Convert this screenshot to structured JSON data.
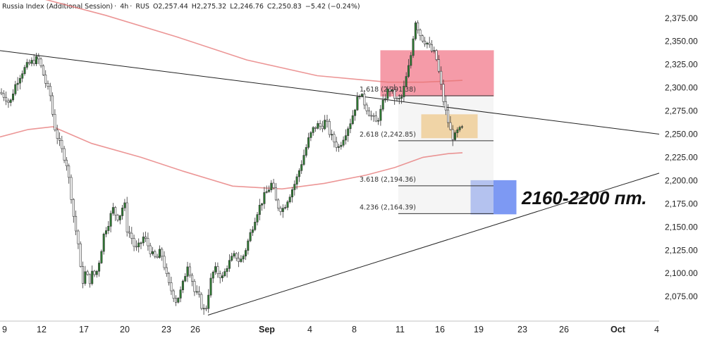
{
  "header": {
    "instrument": "Russia Index (Additional Session)",
    "interval": "4h",
    "exchange": "RUS",
    "open": "O2,257.44",
    "high": "H2,275.32",
    "low": "L2,246.76",
    "close": "C2,250.83",
    "change": "−5.42 (−0.24%)"
  },
  "colors": {
    "up": "#2e7d32",
    "down": "#ffffff",
    "ma": "#e57373",
    "red_zone": "#f48a9a",
    "orange_zone": "#f5b650",
    "blue_zone": "#6f8ff2",
    "fib_bg": "#ebebeb"
  },
  "chart_data": {
    "type": "candlestick",
    "y_axis": {
      "min": 2050,
      "max": 2390,
      "ticks": [
        2075,
        2100,
        2125,
        2150,
        2175,
        2200,
        2225,
        2250,
        2275,
        2300,
        2325,
        2350,
        2375
      ],
      "tick_labels": [
        "2,075.00",
        "2,100.00",
        "2,125.00",
        "2,150.00",
        "2,175.00",
        "2,200.00",
        "2,225.00",
        "2,250.00",
        "2,275.00",
        "2,300.00",
        "2,325.00",
        "2,350.00",
        "2,375.00"
      ],
      "position": "right"
    },
    "x_axis": {
      "tick_labels": [
        "9",
        "12",
        "17",
        "20",
        "23",
        "26",
        "Sep",
        "4",
        "8",
        "11",
        "16",
        "19",
        "23",
        "26",
        "Oct",
        "4"
      ],
      "bold_labels": [
        "Sep",
        "Oct"
      ]
    },
    "candle_anchors": [
      [
        0,
        2295
      ],
      [
        8,
        2290
      ],
      [
        14,
        2282
      ],
      [
        20,
        2300
      ],
      [
        26,
        2310
      ],
      [
        32,
        2318
      ],
      [
        40,
        2325
      ],
      [
        46,
        2328
      ],
      [
        54,
        2332
      ],
      [
        60,
        2318
      ],
      [
        66,
        2302
      ],
      [
        72,
        2290
      ],
      [
        76,
        2262
      ],
      [
        82,
        2245
      ],
      [
        88,
        2232
      ],
      [
        94,
        2220
      ],
      [
        98,
        2200
      ],
      [
        102,
        2178
      ],
      [
        106,
        2150
      ],
      [
        110,
        2140
      ],
      [
        114,
        2105
      ],
      [
        118,
        2090
      ],
      [
        122,
        2105
      ],
      [
        126,
        2088
      ],
      [
        130,
        2100
      ],
      [
        136,
        2098
      ],
      [
        142,
        2118
      ],
      [
        148,
        2145
      ],
      [
        154,
        2155
      ],
      [
        160,
        2170
      ],
      [
        166,
        2160
      ],
      [
        172,
        2165
      ],
      [
        176,
        2180
      ],
      [
        180,
        2148
      ],
      [
        186,
        2140
      ],
      [
        192,
        2125
      ],
      [
        198,
        2130
      ],
      [
        204,
        2140
      ],
      [
        210,
        2130
      ],
      [
        216,
        2120
      ],
      [
        222,
        2115
      ],
      [
        228,
        2125
      ],
      [
        234,
        2105
      ],
      [
        238,
        2090
      ],
      [
        244,
        2080
      ],
      [
        250,
        2070
      ],
      [
        256,
        2080
      ],
      [
        260,
        2090
      ],
      [
        266,
        2110
      ],
      [
        272,
        2095
      ],
      [
        276,
        2080
      ],
      [
        282,
        2075
      ],
      [
        288,
        2060
      ],
      [
        292,
        2062
      ],
      [
        298,
        2090
      ],
      [
        304,
        2105
      ],
      [
        310,
        2100
      ],
      [
        316,
        2095
      ],
      [
        322,
        2108
      ],
      [
        328,
        2115
      ],
      [
        334,
        2120
      ],
      [
        340,
        2112
      ],
      [
        346,
        2120
      ],
      [
        352,
        2135
      ],
      [
        358,
        2150
      ],
      [
        364,
        2165
      ],
      [
        370,
        2175
      ],
      [
        376,
        2185
      ],
      [
        382,
        2192
      ],
      [
        386,
        2198
      ],
      [
        390,
        2180
      ],
      [
        396,
        2170
      ],
      [
        402,
        2170
      ],
      [
        408,
        2180
      ],
      [
        414,
        2190
      ],
      [
        420,
        2200
      ],
      [
        426,
        2215
      ],
      [
        432,
        2230
      ],
      [
        438,
        2245
      ],
      [
        444,
        2255
      ],
      [
        450,
        2260
      ],
      [
        456,
        2258
      ],
      [
        462,
        2265
      ],
      [
        468,
        2250
      ],
      [
        474,
        2242
      ],
      [
        480,
        2235
      ],
      [
        486,
        2245
      ],
      [
        492,
        2255
      ],
      [
        498,
        2265
      ],
      [
        504,
        2280
      ],
      [
        510,
        2295
      ],
      [
        516,
        2285
      ],
      [
        522,
        2275
      ],
      [
        528,
        2268
      ],
      [
        534,
        2262
      ],
      [
        540,
        2275
      ],
      [
        546,
        2290
      ],
      [
        552,
        2300
      ],
      [
        558,
        2292
      ],
      [
        564,
        2285
      ],
      [
        570,
        2290
      ],
      [
        576,
        2310
      ],
      [
        582,
        2330
      ],
      [
        586,
        2355
      ],
      [
        590,
        2375
      ],
      [
        594,
        2360
      ],
      [
        600,
        2352
      ],
      [
        606,
        2348
      ],
      [
        612,
        2340
      ],
      [
        618,
        2335
      ],
      [
        624,
        2310
      ],
      [
        628,
        2290
      ],
      [
        632,
        2275
      ],
      [
        636,
        2262
      ],
      [
        640,
        2250
      ],
      [
        644,
        2245
      ],
      [
        648,
        2252
      ],
      [
        652,
        2254
      ],
      [
        656,
        2256
      ],
      [
        658,
        2251
      ]
    ],
    "moving_averages": [
      {
        "color": "#e57373",
        "points": [
          [
            0,
            2412
          ],
          [
            60,
            2396
          ],
          [
            150,
            2378
          ],
          [
            250,
            2355
          ],
          [
            350,
            2330
          ],
          [
            450,
            2313
          ],
          [
            550,
            2306
          ],
          [
            600,
            2306
          ],
          [
            656,
            2308
          ]
        ]
      },
      {
        "color": "#e57373",
        "points": [
          [
            0,
            2247
          ],
          [
            40,
            2255
          ],
          [
            75,
            2258
          ],
          [
            130,
            2240
          ],
          [
            200,
            2225
          ],
          [
            260,
            2210
          ],
          [
            330,
            2194
          ],
          [
            400,
            2191
          ],
          [
            460,
            2197
          ],
          [
            520,
            2206
          ],
          [
            560,
            2214
          ],
          [
            600,
            2225
          ],
          [
            636,
            2229
          ],
          [
            656,
            2230
          ]
        ]
      }
    ],
    "trendlines": [
      {
        "points": [
          [
            0,
            2340
          ],
          [
            935,
            2250
          ]
        ]
      },
      {
        "points": [
          [
            295,
            2055
          ],
          [
            935,
            2208
          ]
        ]
      }
    ],
    "zones": [
      {
        "color": "#f48a9a",
        "x": [
          540,
          700
        ],
        "y": [
          2291,
          2340
        ]
      },
      {
        "color": "#f5b650",
        "x": [
          598,
          677
        ],
        "y": [
          2246,
          2271
        ]
      },
      {
        "color": "#6f8ff2",
        "x": [
          668,
          732
        ],
        "y": [
          2164,
          2200
        ]
      }
    ],
    "fib_levels": [
      {
        "label": "1.618 (2,291.38)",
        "value": 2291.38
      },
      {
        "label": "2.618 (2,242.85)",
        "value": 2242.85
      },
      {
        "label": "3.618 (2,194.36)",
        "value": 2194.36
      },
      {
        "label": "4.236 (2,164.39)",
        "value": 2164.39
      }
    ],
    "annotation": "2160-2200 пт."
  }
}
